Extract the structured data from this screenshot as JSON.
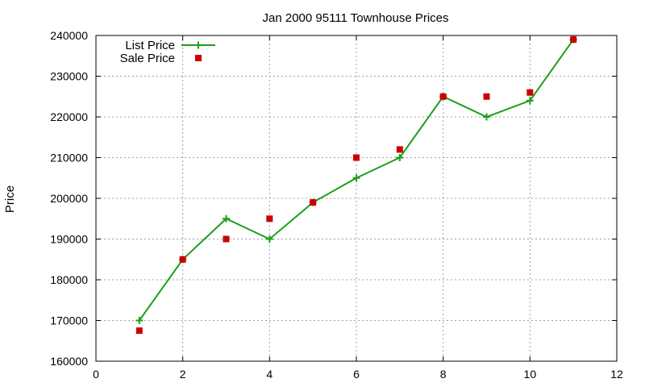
{
  "chart_data": {
    "type": "line",
    "title": "Jan 2000 95111 Townhouse Prices",
    "xlabel": "",
    "ylabel": "Price",
    "xlim": [
      0,
      12
    ],
    "ylim": [
      160000,
      240000
    ],
    "x_ticks": [
      0,
      2,
      4,
      6,
      8,
      10,
      12
    ],
    "y_ticks": [
      160000,
      170000,
      180000,
      190000,
      200000,
      210000,
      220000,
      230000,
      240000
    ],
    "grid": true,
    "legend_position": "top-left",
    "series": [
      {
        "name": "List Price",
        "style": "line-with-plus-markers",
        "color": "#1aa01a",
        "x": [
          1,
          2,
          3,
          4,
          5,
          6,
          7,
          8,
          9,
          10,
          11
        ],
        "y": [
          170000,
          185000,
          195000,
          190000,
          199000,
          205000,
          210000,
          225000,
          220000,
          224000,
          239000
        ]
      },
      {
        "name": "Sale Price",
        "style": "square-markers",
        "color": "#cc0000",
        "x": [
          1,
          2,
          3,
          4,
          5,
          6,
          7,
          8,
          9,
          10,
          11
        ],
        "y": [
          167500,
          185000,
          190000,
          195000,
          199000,
          210000,
          212000,
          225000,
          225000,
          226000,
          239000
        ]
      }
    ]
  }
}
